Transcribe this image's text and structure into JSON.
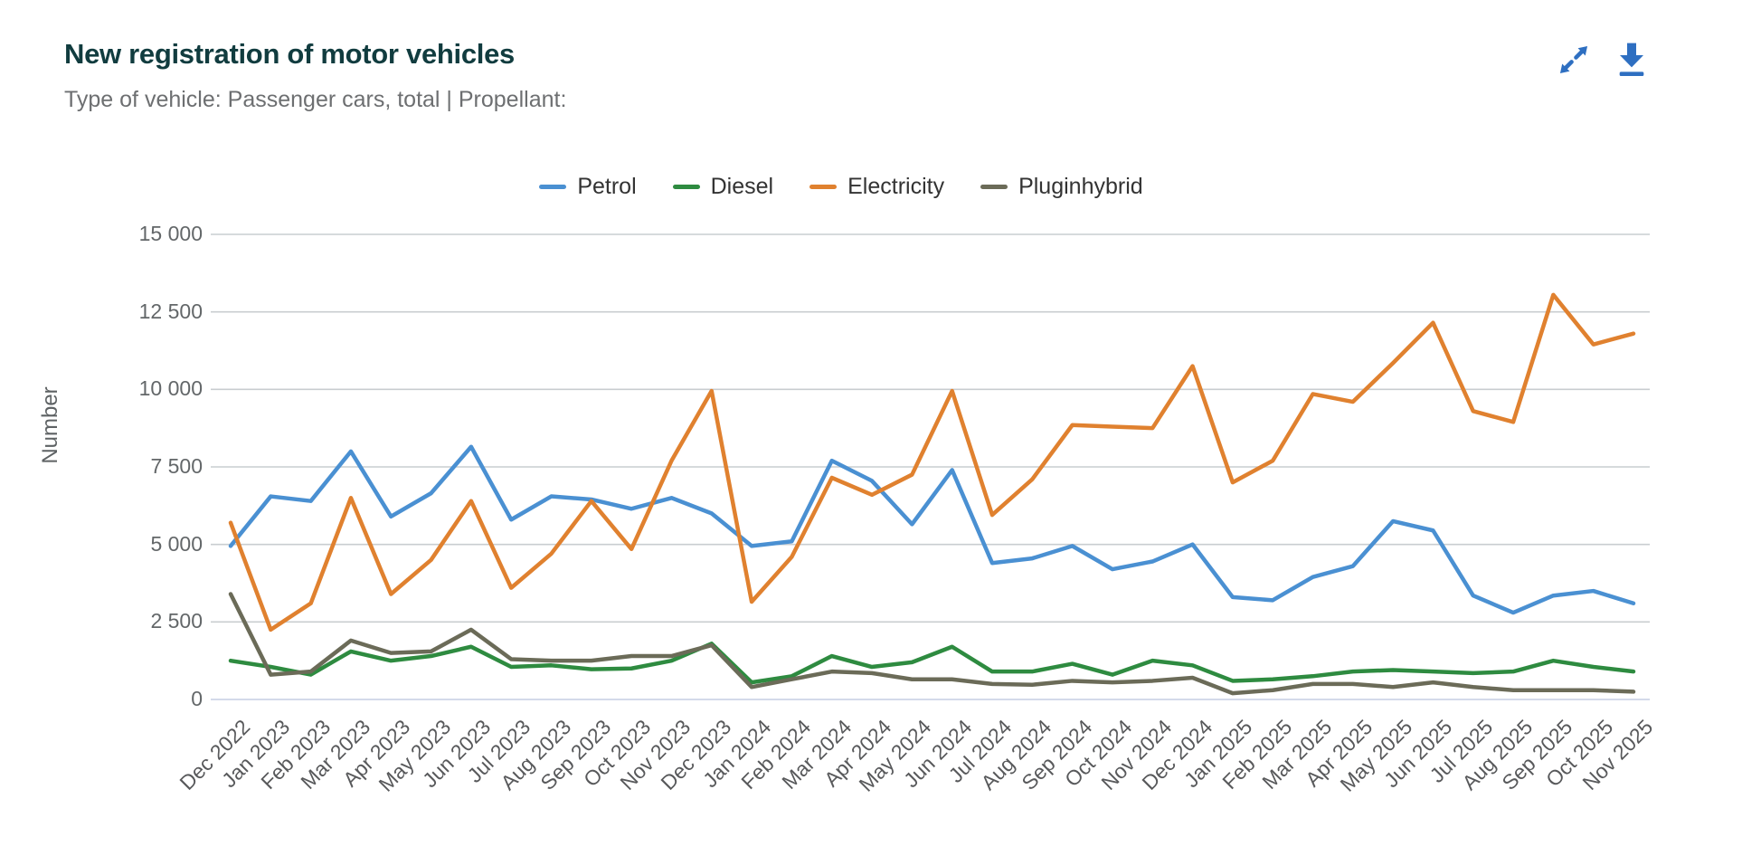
{
  "header": {
    "title": "New registration of motor vehicles",
    "subtitle": "Type of vehicle: Passenger cars, total | Propellant:"
  },
  "toolbar": {
    "expand_icon": "expand-arrows",
    "download_icon": "download-arrow",
    "icon_color": "#2e6fc1"
  },
  "chart_data": {
    "type": "line",
    "title": "New registration of motor vehicles",
    "xlabel": "",
    "ylabel": "Number",
    "ylim": [
      0,
      15000
    ],
    "ytick_step": 2500,
    "ytick_labels": [
      "0",
      "2 500",
      "5 000",
      "7 500",
      "10 000",
      "12 500",
      "15 000"
    ],
    "grid": true,
    "legend_position": "top",
    "grid_color": "#c9cdd0",
    "baseline_color": "#c5cde4",
    "categories": [
      "Dec 2022",
      "Jan 2023",
      "Feb 2023",
      "Mar 2023",
      "Apr 2023",
      "May 2023",
      "Jun 2023",
      "Jul 2023",
      "Aug 2023",
      "Sep 2023",
      "Oct 2023",
      "Nov 2023",
      "Dec 2023",
      "Jan 2024",
      "Feb 2024",
      "Mar 2024",
      "Apr 2024",
      "May 2024",
      "Jun 2024",
      "Jul 2024",
      "Aug 2024",
      "Sep 2024",
      "Oct 2024",
      "Nov 2024",
      "Dec 2024",
      "Jan 2025",
      "Feb 2025",
      "Mar 2025",
      "Apr 2025",
      "May 2025",
      "Jun 2025",
      "Jul 2025",
      "Aug 2025",
      "Sep 2025",
      "Oct 2025",
      "Nov 2025"
    ],
    "series": [
      {
        "name": "Petrol",
        "color": "#4a90d2",
        "values": [
          4950,
          6550,
          6400,
          8000,
          5900,
          6650,
          8150,
          5800,
          6550,
          6450,
          6150,
          6500,
          6000,
          4950,
          5100,
          7700,
          7050,
          5650,
          7400,
          4400,
          4550,
          4950,
          4200,
          4450,
          5000,
          3300,
          3200,
          3950,
          4300,
          5750,
          5450,
          3350,
          2800,
          3350,
          3500,
          3100
        ]
      },
      {
        "name": "Diesel",
        "color": "#2e8b40",
        "values": [
          1250,
          1050,
          800,
          1550,
          1250,
          1400,
          1700,
          1050,
          1100,
          975,
          1000,
          1250,
          1800,
          550,
          750,
          1400,
          1050,
          1200,
          1700,
          900,
          900,
          1150,
          800,
          1250,
          1100,
          600,
          650,
          750,
          900,
          950,
          900,
          850,
          900,
          1250,
          1050,
          900
        ]
      },
      {
        "name": "Electricity",
        "color": "#e0812f",
        "values": [
          5700,
          2250,
          3100,
          6500,
          3400,
          4500,
          6400,
          3600,
          4700,
          6400,
          4850,
          7700,
          9950,
          3150,
          4600,
          7150,
          6600,
          7250,
          9950,
          5950,
          7100,
          8850,
          8800,
          8750,
          10750,
          7000,
          7700,
          9850,
          9600,
          10850,
          12150,
          9300,
          8950,
          13050,
          11450,
          11800
        ]
      },
      {
        "name": "Pluginhybrid",
        "color": "#6b6b58",
        "values": [
          3400,
          800,
          900,
          1900,
          1500,
          1550,
          2250,
          1300,
          1250,
          1250,
          1400,
          1400,
          1750,
          400,
          650,
          900,
          850,
          650,
          650,
          500,
          475,
          600,
          550,
          600,
          700,
          200,
          300,
          500,
          500,
          400,
          550,
          400,
          300,
          300,
          300,
          250
        ]
      }
    ]
  }
}
